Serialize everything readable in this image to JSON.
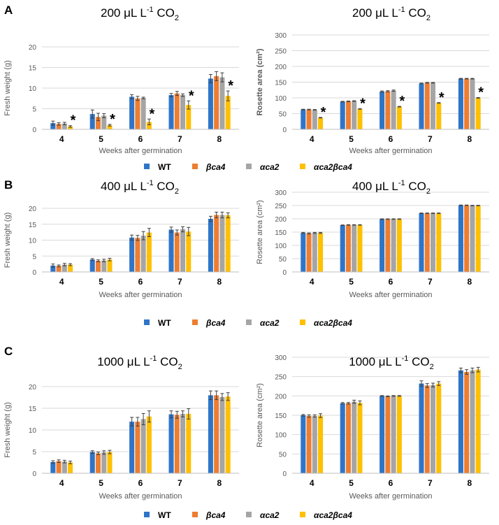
{
  "panel_letters": [
    "A",
    "B",
    "C"
  ],
  "colors": {
    "WT": "#2e75c8",
    "bca4": "#ed7d31",
    "aca2": "#a5a5a5",
    "aca2bca4": "#ffc000",
    "grid": "#d9d9d9",
    "error": "#404040"
  },
  "legend": [
    {
      "label": "WT",
      "key": "WT"
    },
    {
      "label": "βca4",
      "key": "bca4"
    },
    {
      "label": "αca2",
      "key": "aca2"
    },
    {
      "label": "αca2βca4",
      "key": "aca2bca4"
    }
  ],
  "significance_marker": "*",
  "chart_data": [
    {
      "type": "bar",
      "panel": "A",
      "title_main": "200 μL L",
      "title_sup": "-1",
      "title_co": " CO",
      "title_sub": "2",
      "xlabel": "Weeks after germination",
      "ylabel": "Fresh weight (g)",
      "ylim": [
        0,
        20
      ],
      "yticks": [
        0,
        5,
        10,
        15,
        20
      ],
      "categories": [
        "4",
        "5",
        "6",
        "7",
        "8"
      ],
      "series": [
        {
          "name": "WT",
          "values": [
            1.5,
            3.7,
            7.9,
            8.3,
            12.3
          ],
          "errors": [
            0.5,
            1.0,
            0.5,
            0.4,
            1.0
          ]
        },
        {
          "name": "βca4",
          "values": [
            1.3,
            3.0,
            7.5,
            8.7,
            12.9
          ],
          "errors": [
            0.3,
            0.9,
            0.5,
            0.5,
            1.1
          ]
        },
        {
          "name": "αca2",
          "values": [
            1.4,
            3.3,
            7.6,
            8.3,
            12.6
          ],
          "errors": [
            0.3,
            0.5,
            0.2,
            0.3,
            1.1
          ]
        },
        {
          "name": "αca2βca4",
          "values": [
            0.7,
            1.0,
            1.8,
            5.9,
            8.1
          ],
          "errors": [
            0.2,
            0.2,
            0.7,
            1.0,
            1.2
          ]
        }
      ],
      "significant": [
        true,
        true,
        true,
        true,
        true
      ]
    },
    {
      "type": "bar",
      "panel": "A",
      "title_main": "200 μL L",
      "title_sup": "-1",
      "title_co": " CO",
      "title_sub": "2",
      "xlabel": "Weeks after germination",
      "ylabel": "Rosette area (cm²)",
      "ylabel_bold": true,
      "ylim": [
        0,
        300
      ],
      "yticks": [
        0,
        50,
        100,
        150,
        200,
        250,
        300
      ],
      "categories": [
        "4",
        "5",
        "6",
        "7",
        "8"
      ],
      "series": [
        {
          "name": "WT",
          "values": [
            63,
            88,
            120,
            146,
            161
          ],
          "errors": [
            1,
            1,
            2,
            1,
            1
          ]
        },
        {
          "name": "βca4",
          "values": [
            63,
            89,
            121,
            148,
            161
          ],
          "errors": [
            1,
            1,
            2,
            1,
            1
          ]
        },
        {
          "name": "αca2",
          "values": [
            62,
            90,
            123,
            148,
            161
          ],
          "errors": [
            1,
            1,
            2,
            1,
            1
          ]
        },
        {
          "name": "αca2βca4",
          "values": [
            37,
            65,
            72,
            84,
            100
          ],
          "errors": [
            1,
            1,
            1,
            1,
            1
          ]
        }
      ],
      "significant": [
        true,
        true,
        true,
        true,
        true
      ]
    },
    {
      "type": "bar",
      "panel": "B",
      "title_main": "400 μL L",
      "title_sup": "-1",
      "title_co": " CO",
      "title_sub": "2",
      "xlabel": "Weeks after germination",
      "ylabel": "Fresh weight (g)",
      "ylim": [
        0,
        20
      ],
      "yticks": [
        0,
        5,
        10,
        15,
        20
      ],
      "categories": [
        "4",
        "5",
        "6",
        "7",
        "8"
      ],
      "series": [
        {
          "name": "WT",
          "values": [
            2.0,
            3.9,
            10.8,
            13.3,
            16.7
          ],
          "errors": [
            0.5,
            0.3,
            0.8,
            0.8,
            0.8
          ]
        },
        {
          "name": "βca4",
          "values": [
            1.9,
            3.5,
            10.7,
            12.4,
            17.9
          ],
          "errors": [
            0.3,
            0.3,
            0.8,
            0.8,
            0.9
          ]
        },
        {
          "name": "αca2",
          "values": [
            2.3,
            3.6,
            11.4,
            13.4,
            17.9
          ],
          "errors": [
            0.4,
            0.4,
            1.3,
            0.8,
            0.9
          ]
        },
        {
          "name": "αca2βca4",
          "values": [
            2.3,
            3.9,
            12.4,
            12.7,
            17.8
          ],
          "errors": [
            0.3,
            0.4,
            1.3,
            1.3,
            0.8
          ]
        }
      ],
      "significant": [
        false,
        false,
        false,
        false,
        false
      ]
    },
    {
      "type": "bar",
      "panel": "B",
      "title_main": "400 μL L",
      "title_sup": "-1",
      "title_co": " CO",
      "title_sub": "2",
      "xlabel": "Weeks after germination",
      "ylabel": "Rosette area (cm²)",
      "ylim": [
        0,
        300
      ],
      "yticks": [
        0,
        50,
        100,
        150,
        200,
        250,
        300
      ],
      "categories": [
        "4",
        "5",
        "6",
        "7",
        "8"
      ],
      "series": [
        {
          "name": "WT",
          "values": [
            147,
            176,
            199,
            221,
            251
          ],
          "errors": [
            2,
            1,
            1,
            1,
            1
          ]
        },
        {
          "name": "βca4",
          "values": [
            145,
            177,
            199,
            221,
            251
          ],
          "errors": [
            2,
            1,
            1,
            1,
            1
          ]
        },
        {
          "name": "αca2",
          "values": [
            147,
            177,
            199,
            221,
            250
          ],
          "errors": [
            2,
            1,
            1,
            1,
            1
          ]
        },
        {
          "name": "αca2βca4",
          "values": [
            147,
            177,
            199,
            221,
            250
          ],
          "errors": [
            2,
            1,
            1,
            1,
            1
          ]
        }
      ],
      "significant": [
        false,
        false,
        false,
        false,
        false
      ]
    },
    {
      "type": "bar",
      "panel": "C",
      "title_main": "1000 μL L",
      "title_sup": "-1",
      "title_co": " CO",
      "title_sub": "2",
      "xlabel": "Weeks after germination",
      "ylabel": "Fresh weight (g)",
      "ylim": [
        0,
        20
      ],
      "yticks": [
        0,
        5,
        10,
        15,
        20
      ],
      "categories": [
        "4",
        "5",
        "6",
        "7",
        "8"
      ],
      "series": [
        {
          "name": "WT",
          "values": [
            2.6,
            4.9,
            11.9,
            13.6,
            18.0
          ],
          "errors": [
            0.3,
            0.3,
            1.0,
            0.8,
            1.0
          ]
        },
        {
          "name": "βca4",
          "values": [
            2.8,
            4.6,
            11.9,
            13.5,
            18.0
          ],
          "errors": [
            0.3,
            0.3,
            1.0,
            0.8,
            1.0
          ]
        },
        {
          "name": "αca2",
          "values": [
            2.7,
            4.8,
            12.5,
            13.7,
            17.6
          ],
          "errors": [
            0.3,
            0.4,
            1.3,
            0.7,
            0.8
          ]
        },
        {
          "name": "αca2βca4",
          "values": [
            2.5,
            4.9,
            13.1,
            13.7,
            17.7
          ],
          "errors": [
            0.3,
            0.4,
            1.3,
            1.2,
            0.9
          ]
        }
      ],
      "significant": [
        false,
        false,
        false,
        false,
        false
      ]
    },
    {
      "type": "bar",
      "panel": "C",
      "title_main": "1000 μL L",
      "title_sup": "-1",
      "title_co": " CO",
      "title_sub": "2",
      "xlabel": "Weeks after germination",
      "ylabel": "Rosette area (cm²)",
      "ylim": [
        0,
        300
      ],
      "yticks": [
        0,
        50,
        100,
        150,
        200,
        250,
        300
      ],
      "categories": [
        "4",
        "5",
        "6",
        "7",
        "8"
      ],
      "series": [
        {
          "name": "WT",
          "values": [
            150,
            181,
            200,
            232,
            266
          ],
          "errors": [
            2,
            2,
            1,
            7,
            6
          ]
        },
        {
          "name": "βca4",
          "values": [
            148,
            181,
            199,
            227,
            262
          ],
          "errors": [
            3,
            2,
            1,
            5,
            6
          ]
        },
        {
          "name": "αca2",
          "values": [
            148,
            185,
            200,
            228,
            266
          ],
          "errors": [
            3,
            4,
            1,
            5,
            6
          ]
        },
        {
          "name": "αca2βca4",
          "values": [
            149,
            182,
            200,
            232,
            268
          ],
          "errors": [
            5,
            5,
            1,
            5,
            6
          ]
        }
      ],
      "significant": [
        false,
        false,
        false,
        false,
        false
      ]
    }
  ]
}
